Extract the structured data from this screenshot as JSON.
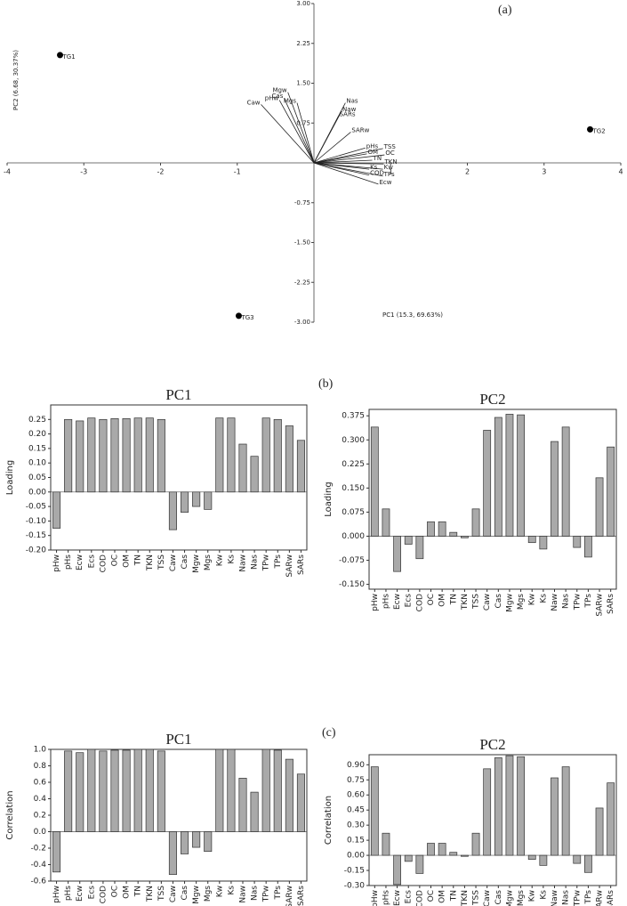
{
  "chart_data": [
    {
      "type": "biplot",
      "panel_label": "(a)",
      "xlabel": "PC1 (15.3, 69.63%)",
      "ylabel": "PC2 (6.68, 30.37%)",
      "xlim": [
        -4,
        4
      ],
      "ylim": [
        -3,
        3
      ],
      "xticks": [
        -4,
        -3,
        -2,
        -1,
        1,
        2,
        3,
        4
      ],
      "yticks": [
        {
          "value": 3,
          "label": "3.00"
        },
        2.25,
        {
          "value": 1.5,
          "label": "1.50"
        },
        0.75,
        -0.75,
        {
          "value": -1.5,
          "label": "-1.50"
        },
        -2.25,
        {
          "value": -3,
          "label": "-3.00"
        }
      ],
      "points": {
        "labels": [
          "TG1",
          "TG2",
          "TG3"
        ],
        "x": [
          -3.31,
          3.6,
          -0.98
        ],
        "y": [
          2.03,
          0.63,
          -2.88
        ]
      },
      "vectors": {
        "labels": [
          "pHw",
          "Caw",
          "Cas",
          "Mgw",
          "Mgs",
          "Nas",
          "Naw",
          "SARs",
          "SARw",
          "pHs",
          "TSS",
          "OM",
          "OC",
          "TN",
          "TKN",
          "Ks",
          "Kw",
          "COD",
          "TPs",
          "Ecw"
        ],
        "x": [
          -0.45,
          -0.69,
          -0.39,
          -0.34,
          -0.22,
          0.41,
          0.36,
          0.32,
          0.48,
          0.67,
          0.9,
          0.69,
          0.92,
          0.76,
          0.91,
          0.72,
          0.9,
          0.72,
          0.9,
          0.84
        ],
        "y": [
          1.18,
          1.1,
          1.22,
          1.33,
          1.13,
          1.13,
          0.97,
          0.88,
          0.58,
          0.28,
          0.27,
          0.17,
          0.15,
          0.05,
          -0.02,
          -0.12,
          -0.12,
          -0.23,
          -0.25,
          -0.4
        ]
      }
    },
    {
      "type": "bar",
      "panel_label": "(b)",
      "title": "PC1",
      "ylabel": "Loading",
      "color": "#a9a9a9",
      "categories": [
        "pHw",
        "pHs",
        "Ecw",
        "Ecs",
        "COD",
        "OC",
        "OM",
        "TN",
        "TKN",
        "TSS",
        "Caw",
        "Cas",
        "Mgw",
        "Mgs",
        "Kw",
        "Ks",
        "Naw",
        "Nas",
        "TPw",
        "TPs",
        "SARw",
        "SARs"
      ],
      "values": [
        -0.125,
        0.25,
        0.245,
        0.255,
        0.25,
        0.253,
        0.253,
        0.255,
        0.255,
        0.25,
        -0.13,
        -0.07,
        -0.05,
        -0.06,
        0.255,
        0.255,
        0.165,
        0.123,
        0.255,
        0.25,
        0.228,
        0.178
      ],
      "ylim": [
        -0.2,
        0.3
      ],
      "yticks": [
        {
          "value": -0.2,
          "label": "-0.20"
        },
        -0.15,
        {
          "value": -0.1,
          "label": "-0.10"
        },
        -0.05,
        {
          "value": 0,
          "label": "0.00"
        },
        0.05,
        {
          "value": 0.1,
          "label": "0.10"
        },
        0.15,
        {
          "value": 0.2,
          "label": "0.20"
        },
        0.25
      ]
    },
    {
      "type": "bar",
      "title": "PC2",
      "ylabel": "Loading",
      "color": "#a9a9a9",
      "categories": [
        "pHw",
        "pHs",
        "Ecw",
        "Ecs",
        "COD",
        "OC",
        "OM",
        "TN",
        "TKN",
        "TSS",
        "Caw",
        "Cas",
        "Mgw",
        "Mgs",
        "Kw",
        "Ks",
        "Naw",
        "Nas",
        "TPw",
        "TPs",
        "SARw",
        "SARs"
      ],
      "values": [
        0.34,
        0.085,
        -0.11,
        -0.025,
        -0.07,
        0.045,
        0.045,
        0.012,
        -0.005,
        0.085,
        0.33,
        0.37,
        0.38,
        0.378,
        -0.02,
        -0.04,
        0.295,
        0.34,
        -0.035,
        -0.065,
        0.182,
        0.278
      ],
      "ylim": [
        -0.165,
        0.395
      ],
      "yticks": [
        {
          "value": -0.15,
          "label": "-0.150"
        },
        -0.075,
        {
          "value": 0,
          "label": "0.000"
        },
        0.075,
        {
          "value": 0.15,
          "label": "0.150"
        },
        0.225,
        {
          "value": 0.3,
          "label": "0.300"
        },
        0.375
      ]
    },
    {
      "type": "bar",
      "panel_label": "(c)",
      "title": "PC1",
      "ylabel": "Correlation",
      "color": "#a9a9a9",
      "categories": [
        "pHw",
        "pHs",
        "Ecw",
        "Ecs",
        "COD",
        "OC",
        "OM",
        "TN",
        "TKN",
        "TSS",
        "Caw",
        "Cas",
        "Mgw",
        "Mgs",
        "Kw",
        "Ks",
        "Naw",
        "Nas",
        "TPw",
        "TPs",
        "SARw",
        "SARs"
      ],
      "values": [
        -0.49,
        0.98,
        0.96,
        1.0,
        0.98,
        0.99,
        0.99,
        1.0,
        1.0,
        0.98,
        -0.52,
        -0.27,
        -0.19,
        -0.24,
        1.0,
        1.0,
        0.65,
        0.48,
        1.0,
        0.99,
        0.88,
        0.7
      ],
      "ylim": [
        -0.6,
        1.0
      ],
      "yticks": [
        -0.6,
        -0.4,
        -0.2,
        {
          "value": 0,
          "label": "0.0"
        },
        0.2,
        0.4,
        0.6,
        0.8,
        {
          "value": 1,
          "label": "1.0"
        }
      ]
    },
    {
      "type": "bar",
      "title": "PC2",
      "ylabel": "Correlation",
      "color": "#a9a9a9",
      "categories": [
        "pHw",
        "pHs",
        "Ecw",
        "Ecs",
        "COD",
        "OC",
        "OM",
        "TN",
        "TKN",
        "TSS",
        "Caw",
        "Cas",
        "Mgw",
        "Mgs",
        "Kw",
        "Ks",
        "Naw",
        "Nas",
        "TPw",
        "TPs",
        "SARw",
        "SARs"
      ],
      "values": [
        0.88,
        0.22,
        -0.29,
        -0.06,
        -0.18,
        0.12,
        0.12,
        0.03,
        -0.01,
        0.22,
        0.86,
        0.97,
        0.99,
        0.98,
        -0.04,
        -0.1,
        0.77,
        0.88,
        -0.08,
        -0.17,
        0.47,
        0.72
      ],
      "ylim": [
        -0.3,
        1.0
      ],
      "yticks": [
        {
          "value": -0.3,
          "label": "-0.30"
        },
        -0.15,
        {
          "value": 0,
          "label": "0.00"
        },
        0.15,
        {
          "value": 0.3,
          "label": "0.30"
        },
        0.45,
        {
          "value": 0.6,
          "label": "0.60"
        },
        0.75,
        {
          "value": 0.9,
          "label": "0.90"
        }
      ]
    }
  ]
}
